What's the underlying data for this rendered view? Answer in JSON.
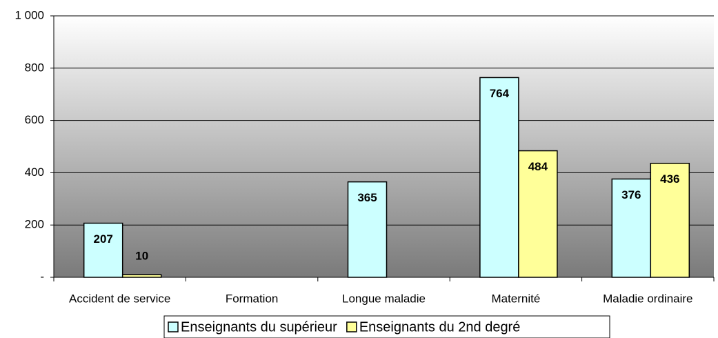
{
  "chart_data": {
    "type": "bar",
    "categories": [
      "Accident de service",
      "Formation",
      "Longue maladie",
      "Maternité",
      "Maladie ordinaire"
    ],
    "series": [
      {
        "name": "Enseignants du supérieur",
        "color": "#ccffff",
        "values": [
          207,
          null,
          365,
          764,
          376
        ]
      },
      {
        "name": "Enseignants du 2nd degré",
        "color": "#ffff99",
        "values": [
          10,
          null,
          null,
          484,
          436
        ]
      }
    ],
    "ylim": [
      0,
      1000
    ],
    "yticks": [
      {
        "value": 0,
        "label": "-"
      },
      200,
      400,
      600,
      800,
      {
        "value": 1000,
        "label": "1 000"
      }
    ],
    "grid": true,
    "legend": "bottom"
  }
}
